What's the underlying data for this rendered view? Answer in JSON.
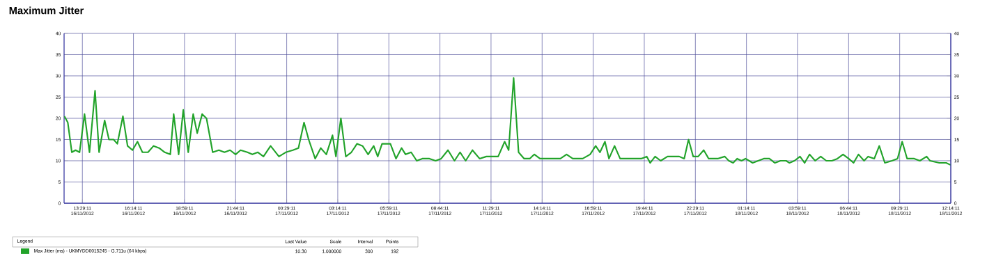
{
  "chart_data": {
    "type": "line",
    "title": "Maximum Jitter",
    "legend_title": "Legend",
    "annotations": [
      "Last Value",
      "Scale",
      "Interval",
      "Points",
      "10.30",
      "1.000000",
      "300",
      "192"
    ],
    "xlim": [
      "2012-11-16T12:30",
      "2012-11-18T12:14"
    ],
    "ylim": [
      0,
      40
    ],
    "y2lim": [
      0,
      40
    ],
    "yticks": [
      0,
      5,
      10,
      15,
      20,
      25,
      30,
      35,
      40
    ],
    "y2ticks": [
      0,
      5,
      10,
      15,
      20,
      25,
      30,
      35,
      40
    ],
    "xticks": [
      {
        "value": "2012-11-16T13:29",
        "label": "13:29:11 16/11/2012"
      },
      {
        "value": "2012-11-16T16:14",
        "label": "16:14:11 16/11/2012"
      },
      {
        "value": "2012-11-16T18:59",
        "label": "18:59:11 16/11/2012"
      },
      {
        "value": "2012-11-16T21:44",
        "label": "21:44:11 16/11/2012"
      },
      {
        "value": "2012-11-17T00:29",
        "label": "00:29:11 17/11/2012"
      },
      {
        "value": "2012-11-17T03:14",
        "label": "03:14:11 17/11/2012"
      },
      {
        "value": "2012-11-17T05:59",
        "label": "05:59:11 17/11/2012"
      },
      {
        "value": "2012-11-17T08:44",
        "label": "08:44:11 17/11/2012"
      },
      {
        "value": "2012-11-17T11:29",
        "label": "11:29:11 17/11/2012"
      },
      {
        "value": "2012-11-17T14:14",
        "label": "14:14:11 17/11/2012"
      },
      {
        "value": "2012-11-17T16:59",
        "label": "16:59:11 17/11/2012"
      },
      {
        "value": "2012-11-17T19:44",
        "label": "19:44:11 17/11/2012"
      },
      {
        "value": "2012-11-17T22:29",
        "label": "22:29:11 17/11/2012"
      },
      {
        "value": "2012-11-18T01:14",
        "label": "01:14:11 18/11/2012"
      },
      {
        "value": "2012-11-18T03:59",
        "label": "03:59:11 18/11/2012"
      },
      {
        "value": "2012-11-18T06:44",
        "label": "06:44:11 18/11/2012"
      },
      {
        "value": "2012-11-18T09:29",
        "label": "09:29:11 18/11/2012"
      },
      {
        "value": "2012-11-18T12:14",
        "label": "12:14:11 18/11/2012"
      }
    ],
    "grid": true,
    "legend": "bottom",
    "marker": "none",
    "line_style": "solid",
    "x": [
      "2012-11-16T12:31",
      "2012-11-16T12:42",
      "2012-11-16T12:55",
      "2012-11-16T13:07",
      "2012-11-16T13:20",
      "2012-11-16T13:36",
      "2012-11-16T13:52",
      "2012-11-16T14:10",
      "2012-11-16T14:23",
      "2012-11-16T14:41",
      "2012-11-16T14:55",
      "2012-11-16T15:10",
      "2012-11-16T15:22",
      "2012-11-16T15:40",
      "2012-11-16T15:55",
      "2012-11-16T16:11",
      "2012-11-16T16:27",
      "2012-11-16T16:43",
      "2012-11-16T17:01",
      "2012-11-16T17:19",
      "2012-11-16T17:37",
      "2012-11-16T17:55",
      "2012-11-16T18:13",
      "2012-11-16T18:24",
      "2012-11-16T18:40",
      "2012-11-16T18:55",
      "2012-11-16T19:11",
      "2012-11-16T19:27",
      "2012-11-16T19:40",
      "2012-11-16T19:56",
      "2012-11-16T20:10",
      "2012-11-16T20:30",
      "2012-11-16T20:50",
      "2012-11-16T21:08",
      "2012-11-16T21:26",
      "2012-11-16T21:44",
      "2012-11-16T22:00",
      "2012-11-16T22:22",
      "2012-11-16T22:38",
      "2012-11-16T22:56",
      "2012-11-16T23:14",
      "2012-11-16T23:37",
      "2012-11-17T00:04",
      "2012-11-17T00:26",
      "2012-11-17T00:49",
      "2012-11-17T01:07",
      "2012-11-17T01:25",
      "2012-11-17T01:40",
      "2012-11-17T02:01",
      "2012-11-17T02:19",
      "2012-11-17T02:37",
      "2012-11-17T02:57",
      "2012-11-17T03:08",
      "2012-11-17T03:24",
      "2012-11-17T03:40",
      "2012-11-17T03:58",
      "2012-11-17T04:16",
      "2012-11-17T04:34",
      "2012-11-17T04:52",
      "2012-11-17T05:10",
      "2012-11-17T05:23",
      "2012-11-17T05:37",
      "2012-11-17T06:04",
      "2012-11-17T06:22",
      "2012-11-17T06:40",
      "2012-11-17T06:53",
      "2012-11-17T07:11",
      "2012-11-17T07:29",
      "2012-11-17T07:47",
      "2012-11-17T08:10",
      "2012-11-17T08:30",
      "2012-11-17T08:48",
      "2012-11-17T09:10",
      "2012-11-17T09:31",
      "2012-11-17T09:49",
      "2012-11-17T10:07",
      "2012-11-17T10:29",
      "2012-11-17T10:52",
      "2012-11-17T11:14",
      "2012-11-17T11:32",
      "2012-11-17T11:52",
      "2012-11-17T12:13",
      "2012-11-17T12:26",
      "2012-11-17T12:42",
      "2012-11-17T12:58",
      "2012-11-17T13:16",
      "2012-11-17T13:34",
      "2012-11-17T13:49",
      "2012-11-17T14:07",
      "2012-11-17T14:41",
      "2012-11-17T15:13",
      "2012-11-17T15:33",
      "2012-11-17T15:53",
      "2012-11-17T16:25",
      "2012-11-17T16:49",
      "2012-11-17T17:07",
      "2012-11-17T17:21",
      "2012-11-17T17:37",
      "2012-11-17T17:50",
      "2012-11-17T18:08",
      "2012-11-17T18:26",
      "2012-11-17T19:00",
      "2012-11-17T19:34",
      "2012-11-17T19:52",
      "2012-11-17T20:03",
      "2012-11-17T20:19",
      "2012-11-17T20:37",
      "2012-11-17T20:59",
      "2012-11-17T21:22",
      "2012-11-17T21:37",
      "2012-11-17T21:53",
      "2012-11-17T22:07",
      "2012-11-17T22:22",
      "2012-11-17T22:38",
      "2012-11-17T22:56",
      "2012-11-17T23:12",
      "2012-11-17T23:41",
      "2012-11-18T00:04",
      "2012-11-18T00:17",
      "2012-11-18T00:31",
      "2012-11-18T00:44",
      "2012-11-18T00:58",
      "2012-11-18T01:11",
      "2012-11-18T01:34",
      "2012-11-18T01:52",
      "2012-11-18T02:10",
      "2012-11-18T02:28",
      "2012-11-18T02:46",
      "2012-11-18T03:04",
      "2012-11-18T03:22",
      "2012-11-18T03:33",
      "2012-11-18T03:49",
      "2012-11-18T04:07",
      "2012-11-18T04:22",
      "2012-11-18T04:38",
      "2012-11-18T04:56",
      "2012-11-18T05:14",
      "2012-11-18T05:32",
      "2012-11-18T05:50",
      "2012-11-18T06:08",
      "2012-11-18T06:26",
      "2012-11-18T06:44",
      "2012-11-18T07:00",
      "2012-11-18T07:16",
      "2012-11-18T07:34",
      "2012-11-18T07:47",
      "2012-11-18T08:07",
      "2012-11-18T08:23",
      "2012-11-18T08:41",
      "2012-11-18T09:04",
      "2012-11-18T09:22",
      "2012-11-18T09:37",
      "2012-11-18T09:53",
      "2012-11-18T10:16",
      "2012-11-18T10:34",
      "2012-11-18T10:56",
      "2012-11-18T11:07",
      "2012-11-18T11:37",
      "2012-11-18T11:59",
      "2012-11-18T12:14"
    ],
    "series": [
      {
        "name": "Max Jitter (ms) - UKMYDD0015245 - G.711u (64 kbps)",
        "color": "#22a32a",
        "values": [
          20.5,
          19,
          12,
          12.5,
          12,
          21,
          12,
          26.5,
          12,
          19.5,
          15,
          15,
          14,
          20.5,
          13.5,
          12.5,
          14.5,
          12,
          12,
          13.5,
          13,
          12,
          11.5,
          21,
          11.5,
          22,
          12,
          21,
          16.5,
          21,
          20,
          12,
          12.5,
          12,
          12.5,
          11.5,
          12.5,
          12,
          11.5,
          12,
          11,
          13.5,
          11,
          12,
          12.5,
          13,
          19,
          15,
          10.5,
          13,
          11.5,
          16,
          11,
          20,
          11,
          12,
          14,
          13.5,
          11.5,
          13.5,
          11,
          14,
          14,
          10.5,
          13,
          11.5,
          12,
          10,
          10.5,
          10.5,
          10,
          10.5,
          12.5,
          10,
          12,
          10,
          12.5,
          10.5,
          11,
          11,
          11,
          14.5,
          12.5,
          29.5,
          12,
          10.5,
          10.5,
          11.5,
          10.5,
          10.5,
          10.5,
          11.5,
          10.5,
          10.5,
          11.5,
          13.5,
          12,
          14.5,
          10.5,
          13.5,
          10.5,
          10.5,
          10.5,
          11,
          9.5,
          11,
          10,
          11,
          11,
          11,
          10.5,
          15,
          11,
          11,
          12.5,
          10.5,
          10.5,
          11,
          10,
          9.5,
          10.5,
          10,
          10.5,
          9.5,
          10,
          10.5,
          10.5,
          9.5,
          10,
          10,
          9.5,
          10,
          11,
          9.5,
          11.5,
          10,
          11,
          10,
          10,
          10.5,
          11.5,
          10.5,
          9.5,
          11.5,
          10,
          11,
          10.5,
          13.5,
          9.5,
          10,
          10.5,
          14.5,
          10.5,
          10.5,
          10,
          11,
          10,
          9.5,
          9.5,
          9
        ]
      }
    ]
  }
}
